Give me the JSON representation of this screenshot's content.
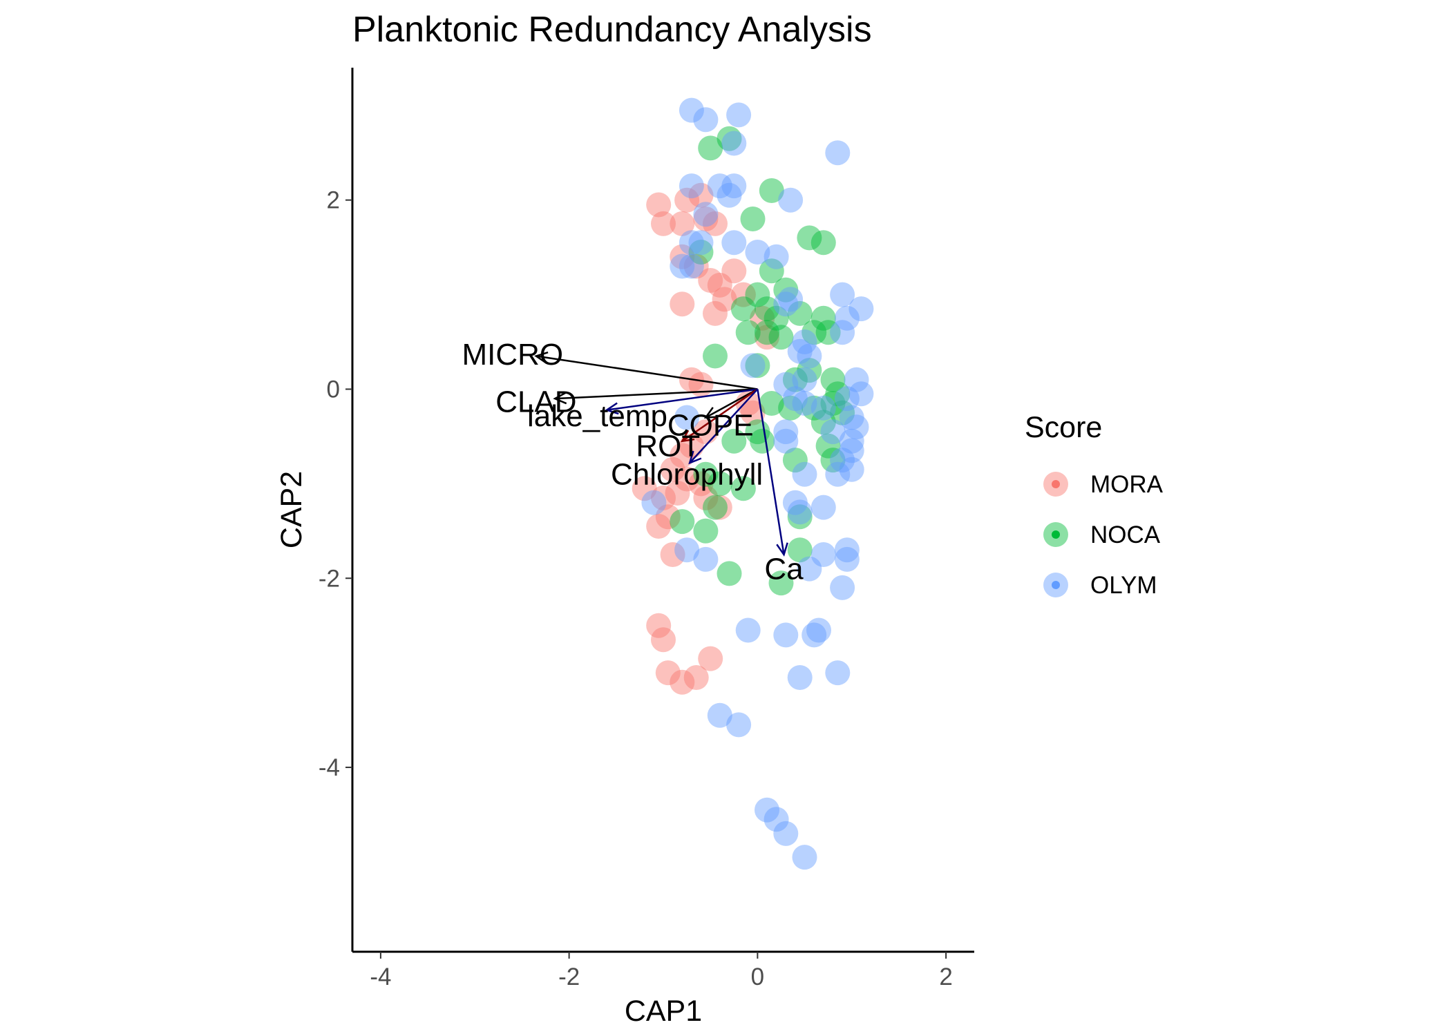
{
  "chart_data": {
    "type": "scatter",
    "title": "Planktonic Redundancy Analysis",
    "xlabel": "CAP1",
    "ylabel": "CAP2",
    "xlim": [
      -4.3,
      2.3
    ],
    "ylim": [
      -5.95,
      3.4
    ],
    "x_ticks": [
      -4,
      -2,
      0,
      2
    ],
    "y_ticks": [
      -4,
      -2,
      0,
      2
    ],
    "x_tick_labels": [
      "-4",
      "-2",
      "0",
      "2"
    ],
    "y_tick_labels": [
      "-4",
      "-2",
      "0",
      "2"
    ],
    "grid": false,
    "legend": {
      "title": "Score",
      "placement": "right",
      "entries": [
        "MORA",
        "NOCA",
        "OLYM"
      ]
    },
    "series": [
      {
        "name": "MORA",
        "color": "#F8766D",
        "points": [
          [
            -1.05,
            1.95
          ],
          [
            -1.0,
            1.75
          ],
          [
            -0.8,
            1.75
          ],
          [
            -0.75,
            2.0
          ],
          [
            -0.6,
            2.05
          ],
          [
            -0.55,
            1.8
          ],
          [
            -0.45,
            1.75
          ],
          [
            -0.8,
            1.4
          ],
          [
            -0.65,
            1.3
          ],
          [
            -0.5,
            1.15
          ],
          [
            -0.4,
            1.1
          ],
          [
            -0.25,
            1.25
          ],
          [
            -0.8,
            0.9
          ],
          [
            -0.45,
            0.8
          ],
          [
            -0.35,
            0.95
          ],
          [
            -0.15,
            1.0
          ],
          [
            0.05,
            0.75
          ],
          [
            0.1,
            0.55
          ],
          [
            -0.7,
            0.1
          ],
          [
            -0.6,
            0.05
          ],
          [
            -0.1,
            -0.15
          ],
          [
            -0.05,
            -0.25
          ],
          [
            -0.55,
            -0.45
          ],
          [
            -0.7,
            -0.6
          ],
          [
            -0.8,
            -0.7
          ],
          [
            -0.9,
            -0.85
          ],
          [
            -0.75,
            -0.95
          ],
          [
            -0.85,
            -1.1
          ],
          [
            -1.2,
            -1.05
          ],
          [
            -1.0,
            -1.15
          ],
          [
            -0.6,
            -1.0
          ],
          [
            -0.55,
            -1.15
          ],
          [
            -0.4,
            -1.25
          ],
          [
            -0.95,
            -1.35
          ],
          [
            -1.05,
            -1.45
          ],
          [
            -0.9,
            -1.75
          ],
          [
            -1.05,
            -2.5
          ],
          [
            -1.0,
            -2.65
          ],
          [
            -0.95,
            -3.0
          ],
          [
            -0.8,
            -3.1
          ],
          [
            -0.65,
            -3.05
          ],
          [
            -0.5,
            -2.85
          ]
        ]
      },
      {
        "name": "NOCA",
        "color": "#00BA38",
        "points": [
          [
            -0.5,
            2.55
          ],
          [
            -0.3,
            2.65
          ],
          [
            0.15,
            2.1
          ],
          [
            -0.05,
            1.8
          ],
          [
            0.55,
            1.6
          ],
          [
            0.7,
            1.55
          ],
          [
            -0.6,
            1.45
          ],
          [
            0.15,
            1.25
          ],
          [
            0.0,
            1.0
          ],
          [
            0.3,
            1.05
          ],
          [
            0.1,
            0.85
          ],
          [
            -0.15,
            0.85
          ],
          [
            0.2,
            0.75
          ],
          [
            0.45,
            0.8
          ],
          [
            0.7,
            0.75
          ],
          [
            0.6,
            0.6
          ],
          [
            0.75,
            0.6
          ],
          [
            0.1,
            0.6
          ],
          [
            -0.1,
            0.6
          ],
          [
            0.25,
            0.55
          ],
          [
            -0.45,
            0.35
          ],
          [
            0.0,
            0.25
          ],
          [
            0.4,
            0.1
          ],
          [
            0.55,
            0.2
          ],
          [
            0.8,
            0.1
          ],
          [
            0.85,
            -0.05
          ],
          [
            0.15,
            -0.15
          ],
          [
            0.35,
            -0.2
          ],
          [
            0.6,
            -0.2
          ],
          [
            0.7,
            -0.35
          ],
          [
            0.8,
            -0.15
          ],
          [
            0.9,
            -0.25
          ],
          [
            0.0,
            -0.45
          ],
          [
            -0.25,
            -0.55
          ],
          [
            0.05,
            -0.55
          ],
          [
            0.75,
            -0.6
          ],
          [
            0.8,
            -0.75
          ],
          [
            0.4,
            -0.75
          ],
          [
            -0.55,
            -0.9
          ],
          [
            -0.4,
            -1.0
          ],
          [
            -0.15,
            -1.05
          ],
          [
            -0.45,
            -1.25
          ],
          [
            0.45,
            -1.35
          ],
          [
            -0.8,
            -1.4
          ],
          [
            -0.55,
            -1.5
          ],
          [
            0.45,
            -1.7
          ],
          [
            -0.3,
            -1.95
          ],
          [
            0.25,
            -2.05
          ]
        ]
      },
      {
        "name": "OLYM",
        "color": "#619CFF",
        "points": [
          [
            -0.7,
            2.95
          ],
          [
            -0.55,
            2.85
          ],
          [
            -0.2,
            2.9
          ],
          [
            -0.25,
            2.6
          ],
          [
            0.85,
            2.5
          ],
          [
            -0.7,
            2.15
          ],
          [
            -0.4,
            2.15
          ],
          [
            -0.25,
            2.15
          ],
          [
            -0.3,
            2.05
          ],
          [
            0.35,
            2.0
          ],
          [
            -0.55,
            1.85
          ],
          [
            -0.7,
            1.55
          ],
          [
            -0.6,
            1.55
          ],
          [
            -0.25,
            1.55
          ],
          [
            0.0,
            1.45
          ],
          [
            0.2,
            1.4
          ],
          [
            -0.8,
            1.3
          ],
          [
            -0.7,
            1.3
          ],
          [
            0.3,
            0.9
          ],
          [
            0.35,
            0.95
          ],
          [
            0.9,
            1.0
          ],
          [
            1.1,
            0.85
          ],
          [
            0.95,
            0.75
          ],
          [
            0.9,
            0.6
          ],
          [
            0.5,
            0.5
          ],
          [
            0.55,
            0.35
          ],
          [
            0.45,
            0.4
          ],
          [
            -0.05,
            0.25
          ],
          [
            0.5,
            0.1
          ],
          [
            0.3,
            0.05
          ],
          [
            1.05,
            0.1
          ],
          [
            1.1,
            -0.05
          ],
          [
            0.95,
            -0.1
          ],
          [
            0.4,
            -0.1
          ],
          [
            0.5,
            -0.15
          ],
          [
            0.7,
            -0.2
          ],
          [
            1.0,
            -0.3
          ],
          [
            1.05,
            -0.4
          ],
          [
            0.8,
            -0.45
          ],
          [
            0.3,
            -0.45
          ],
          [
            0.3,
            -0.55
          ],
          [
            1.0,
            -0.55
          ],
          [
            1.0,
            -0.65
          ],
          [
            0.9,
            -0.75
          ],
          [
            1.0,
            -0.85
          ],
          [
            0.5,
            -0.9
          ],
          [
            0.85,
            -0.9
          ],
          [
            0.4,
            -1.2
          ],
          [
            0.45,
            -1.3
          ],
          [
            0.7,
            -1.25
          ],
          [
            -0.75,
            -0.3
          ],
          [
            -1.1,
            -1.2
          ],
          [
            -0.75,
            -1.7
          ],
          [
            -0.55,
            -1.8
          ],
          [
            0.7,
            -1.75
          ],
          [
            0.95,
            -1.7
          ],
          [
            0.95,
            -1.8
          ],
          [
            0.55,
            -1.9
          ],
          [
            0.9,
            -2.1
          ],
          [
            -0.1,
            -2.55
          ],
          [
            0.3,
            -2.6
          ],
          [
            0.6,
            -2.6
          ],
          [
            0.65,
            -2.55
          ],
          [
            0.45,
            -3.05
          ],
          [
            0.85,
            -3.0
          ],
          [
            -0.4,
            -3.45
          ],
          [
            -0.2,
            -3.55
          ],
          [
            0.1,
            -4.45
          ],
          [
            0.2,
            -4.55
          ],
          [
            0.3,
            -4.7
          ],
          [
            0.5,
            -4.95
          ]
        ]
      }
    ],
    "vectors": [
      {
        "label": "MICRO",
        "x": -2.35,
        "y": 0.35,
        "color": "#000000"
      },
      {
        "label": "CLAD",
        "x": -2.15,
        "y": -0.1,
        "color": "#000000"
      },
      {
        "label": "lake_temp",
        "x": -1.6,
        "y": -0.22,
        "color": "#00007F"
      },
      {
        "label": "COPE",
        "x": -0.55,
        "y": -0.3,
        "color": "#000000"
      },
      {
        "label": "ROT",
        "x": -0.8,
        "y": -0.55,
        "color": "#8B0000"
      },
      {
        "label": "Chlorophyll",
        "x": -0.72,
        "y": -0.78,
        "color": "#00007F"
      },
      {
        "label": "Ca",
        "x": 0.28,
        "y": -1.75,
        "color": "#00007F"
      }
    ],
    "vector_labels": [
      {
        "label": "MICRO",
        "x": -2.6,
        "y": 0.37
      },
      {
        "label": "CLAD",
        "x": -2.35,
        "y": -0.13
      },
      {
        "label": "lake_temp",
        "x": -1.7,
        "y": -0.28
      },
      {
        "label": "COPE",
        "x": -0.5,
        "y": -0.38
      },
      {
        "label": "ROT",
        "x": -0.95,
        "y": -0.6
      },
      {
        "label": "Chlorophyll",
        "x": -0.75,
        "y": -0.9
      },
      {
        "label": "Ca",
        "x": 0.28,
        "y": -1.9
      }
    ]
  }
}
